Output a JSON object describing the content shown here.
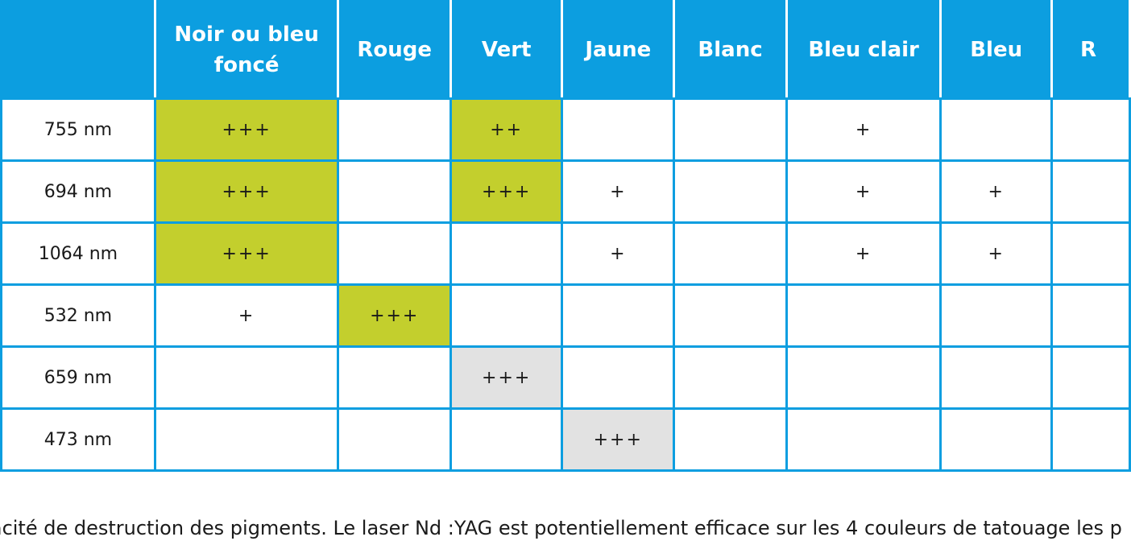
{
  "table": {
    "headers": [
      "",
      "Noir ou bleu foncé",
      "Rouge",
      "Vert",
      "Jaune",
      "Blanc",
      "Bleu clair",
      "Bleu",
      "R"
    ],
    "rows": [
      {
        "label": "755 nm",
        "cells": [
          {
            "v": "+++",
            "hl": "green"
          },
          {
            "v": "",
            "hl": ""
          },
          {
            "v": "++",
            "hl": "green"
          },
          {
            "v": "",
            "hl": ""
          },
          {
            "v": "",
            "hl": ""
          },
          {
            "v": "+",
            "hl": ""
          },
          {
            "v": "",
            "hl": ""
          },
          {
            "v": "",
            "hl": ""
          }
        ]
      },
      {
        "label": "694 nm",
        "cells": [
          {
            "v": "+++",
            "hl": "green"
          },
          {
            "v": "",
            "hl": ""
          },
          {
            "v": "+++",
            "hl": "green"
          },
          {
            "v": "+",
            "hl": ""
          },
          {
            "v": "",
            "hl": ""
          },
          {
            "v": "+",
            "hl": ""
          },
          {
            "v": "+",
            "hl": ""
          },
          {
            "v": "",
            "hl": ""
          }
        ]
      },
      {
        "label": "1064 nm",
        "cells": [
          {
            "v": "+++",
            "hl": "green"
          },
          {
            "v": "",
            "hl": ""
          },
          {
            "v": "",
            "hl": ""
          },
          {
            "v": "+",
            "hl": ""
          },
          {
            "v": "",
            "hl": ""
          },
          {
            "v": "+",
            "hl": ""
          },
          {
            "v": "+",
            "hl": ""
          },
          {
            "v": "",
            "hl": ""
          }
        ]
      },
      {
        "label": "532 nm",
        "cells": [
          {
            "v": "+",
            "hl": ""
          },
          {
            "v": "+++",
            "hl": "green"
          },
          {
            "v": "",
            "hl": ""
          },
          {
            "v": "",
            "hl": ""
          },
          {
            "v": "",
            "hl": ""
          },
          {
            "v": "",
            "hl": ""
          },
          {
            "v": "",
            "hl": ""
          },
          {
            "v": "",
            "hl": ""
          }
        ]
      },
      {
        "label": "659 nm",
        "cells": [
          {
            "v": "",
            "hl": ""
          },
          {
            "v": "",
            "hl": ""
          },
          {
            "v": "+++",
            "hl": "grey"
          },
          {
            "v": "",
            "hl": ""
          },
          {
            "v": "",
            "hl": ""
          },
          {
            "v": "",
            "hl": ""
          },
          {
            "v": "",
            "hl": ""
          },
          {
            "v": "",
            "hl": ""
          }
        ]
      },
      {
        "label": "473 nm",
        "cells": [
          {
            "v": "",
            "hl": ""
          },
          {
            "v": "",
            "hl": ""
          },
          {
            "v": "",
            "hl": ""
          },
          {
            "v": "+++",
            "hl": "grey"
          },
          {
            "v": "",
            "hl": ""
          },
          {
            "v": "",
            "hl": ""
          },
          {
            "v": "",
            "hl": ""
          },
          {
            "v": "",
            "hl": ""
          }
        ]
      }
    ]
  },
  "caption": "icacité de destruction des pigments. Le laser Nd :YAG est potentiellement efficace sur les 4 couleurs de tatouage les p",
  "colors": {
    "header": "#0c9ee0",
    "green": "#c3cf2d",
    "grey": "#e2e2e2"
  }
}
